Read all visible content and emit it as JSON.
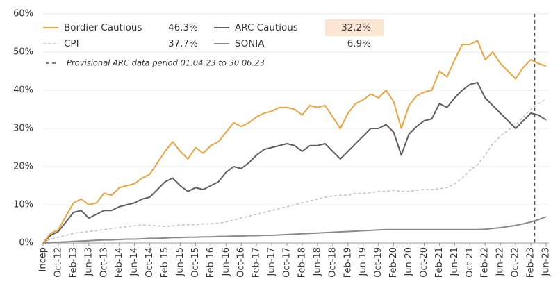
{
  "chart_data": {
    "type": "line",
    "categories": [
      "Incep",
      null,
      "Oct-12",
      null,
      "Feb-13",
      null,
      "Jun-13",
      null,
      "Oct-13",
      null,
      "Feb-14",
      null,
      "Jun-14",
      null,
      "Oct-14",
      null,
      "Feb-15",
      null,
      "Jun-15",
      null,
      "Oct-15",
      null,
      "Feb-16",
      null,
      "Jun-16",
      null,
      "Oct-16",
      null,
      "Feb-17",
      null,
      "Jun-17",
      null,
      "Oct-17",
      null,
      "Feb-18",
      null,
      "Jun-18",
      null,
      "Oct-18",
      null,
      "Feb-19",
      null,
      "Jun-19",
      null,
      "Oct-19",
      null,
      "Feb-20",
      null,
      "Jun-20",
      null,
      "Oct-20",
      null,
      "Feb-21",
      null,
      "Jun-21",
      null,
      "Oct-21",
      null,
      "Feb-22",
      null,
      "Jun-22",
      null,
      "Oct-22",
      null,
      "Feb-23",
      null,
      "Jun-23"
    ],
    "series": [
      {
        "name": "Bordier Cautious",
        "legend_value": "46.3%",
        "color": "#f0a23c",
        "dash": false,
        "width": 2,
        "values": [
          0,
          2.5,
          3.5,
          7,
          10.5,
          11.5,
          10,
          10.5,
          13,
          12.5,
          14.5,
          15,
          15.5,
          17,
          18,
          21,
          24,
          26.5,
          24,
          22,
          25,
          23.5,
          25.5,
          26.5,
          29,
          31.5,
          30.5,
          31.5,
          33,
          34,
          34.5,
          35.5,
          35.5,
          35,
          33.5,
          36,
          35.5,
          36,
          33,
          30,
          34,
          36.5,
          37.5,
          39,
          38,
          40,
          37,
          30,
          36,
          38.5,
          39.5,
          40,
          45,
          43.5,
          48,
          52,
          52,
          53,
          48,
          50,
          47,
          45,
          43,
          46,
          48,
          47,
          46.3
        ]
      },
      {
        "name": "ARC Cautious",
        "legend_value": "32.2%",
        "highlight": "#fbe6d4",
        "color": "#5f5f5f",
        "dash": false,
        "width": 2,
        "values": [
          0,
          2,
          3,
          5.5,
          8,
          8.5,
          6.5,
          7.5,
          8.5,
          8.5,
          9.5,
          10,
          10.5,
          11.5,
          12,
          14,
          16,
          17,
          15,
          13.5,
          14.5,
          14,
          15,
          16,
          18.5,
          20,
          19.5,
          21,
          23,
          24.5,
          25,
          25.5,
          26,
          25.5,
          24,
          25.5,
          25.5,
          26,
          24,
          22,
          24,
          26,
          28,
          30,
          30,
          31,
          29,
          23,
          28.5,
          30.5,
          32,
          32.5,
          36.5,
          35.5,
          38,
          40,
          41.5,
          42,
          38,
          36,
          34,
          32,
          30,
          32,
          34,
          33.5,
          32.2
        ]
      },
      {
        "name": "CPI",
        "legend_value": "37.7%",
        "color": "#c4c4c4",
        "dash": true,
        "width": 1.6,
        "values": [
          0,
          1,
          1.5,
          2,
          2.5,
          2.8,
          3,
          3.2,
          3.5,
          3.8,
          4,
          4.3,
          4.5,
          4.7,
          4.6,
          4.5,
          4.3,
          4.5,
          4.7,
          4.8,
          4.8,
          5,
          5,
          5.2,
          5.5,
          6,
          6.5,
          7,
          7.5,
          8,
          8.5,
          9,
          9.5,
          10,
          10.5,
          11,
          11.5,
          12,
          12.3,
          12.5,
          12.5,
          13,
          13,
          13.2,
          13.5,
          13.5,
          13.8,
          13.5,
          13.5,
          13.8,
          14,
          14,
          14.2,
          14.5,
          15.5,
          17,
          19,
          20.5,
          23,
          26,
          28,
          29.5,
          31,
          33,
          35,
          36.5,
          37.7
        ]
      },
      {
        "name": "SONIA",
        "legend_value": "6.9%",
        "color": "#8a8a8a",
        "dash": false,
        "width": 2,
        "values": [
          0,
          0.1,
          0.2,
          0.3,
          0.4,
          0.5,
          0.6,
          0.7,
          0.8,
          0.8,
          0.9,
          1,
          1,
          1.1,
          1.2,
          1.2,
          1.3,
          1.4,
          1.4,
          1.5,
          1.5,
          1.6,
          1.6,
          1.7,
          1.7,
          1.8,
          1.8,
          1.9,
          1.9,
          2,
          2,
          2.1,
          2.2,
          2.3,
          2.4,
          2.5,
          2.6,
          2.7,
          2.8,
          2.9,
          3,
          3.1,
          3.2,
          3.3,
          3.4,
          3.5,
          3.5,
          3.5,
          3.5,
          3.5,
          3.5,
          3.5,
          3.5,
          3.5,
          3.5,
          3.5,
          3.5,
          3.5,
          3.6,
          3.8,
          4,
          4.3,
          4.6,
          5,
          5.5,
          6.1,
          6.9
        ]
      }
    ],
    "annotation": "Provisional ARC data period 01.04.23 to 30.06.23",
    "ylim": [
      0,
      60
    ],
    "yticks": [
      {
        "value": 0,
        "label": "0%"
      },
      {
        "value": 10,
        "label": "10%"
      },
      {
        "value": 20,
        "label": "20%"
      },
      {
        "value": 30,
        "label": "30%"
      },
      {
        "value": 40,
        "label": "40%"
      },
      {
        "value": 50,
        "label": "50%"
      },
      {
        "value": 60,
        "label": "60%"
      }
    ],
    "grid": true
  }
}
